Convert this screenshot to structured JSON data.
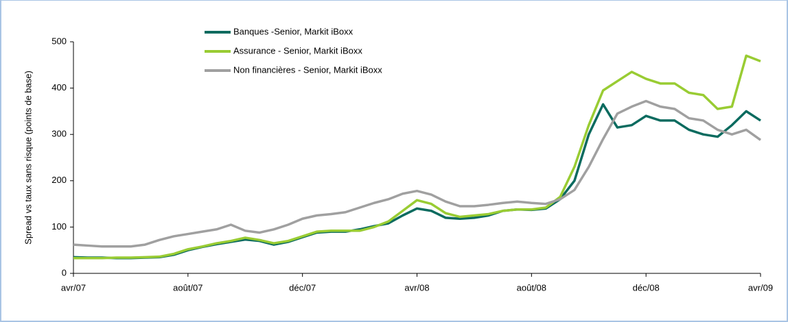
{
  "chart_data": {
    "type": "line",
    "ylabel": "Spread vs taux sans risque (points de base)",
    "categories": [
      "avr/07",
      null,
      null,
      null,
      null,
      null,
      null,
      null,
      "août/07",
      null,
      null,
      null,
      null,
      null,
      null,
      null,
      "déc/07",
      null,
      null,
      null,
      null,
      null,
      null,
      null,
      "avr/08",
      null,
      null,
      null,
      null,
      null,
      null,
      null,
      "août/08",
      null,
      null,
      null,
      null,
      null,
      null,
      null,
      "déc/08",
      null,
      null,
      null,
      null,
      null,
      null,
      null,
      "avr/09"
    ],
    "series": [
      {
        "name": "Banques -Senior, Markit iBoxx",
        "color": "#0b6b5f",
        "values": [
          35,
          34,
          34,
          33,
          33,
          34,
          35,
          40,
          50,
          57,
          63,
          68,
          73,
          70,
          62,
          68,
          78,
          88,
          90,
          90,
          95,
          102,
          108,
          125,
          140,
          135,
          120,
          118,
          120,
          125,
          135,
          138,
          137,
          140,
          160,
          200,
          300,
          365,
          315,
          320,
          340,
          330,
          330,
          310,
          300,
          295,
          320,
          350,
          330
        ]
      },
      {
        "name": "Assurance - Senior, Markit iBoxx",
        "color": "#99cc33",
        "values": [
          33,
          33,
          33,
          34,
          34,
          35,
          36,
          42,
          52,
          58,
          65,
          70,
          77,
          72,
          65,
          70,
          80,
          90,
          92,
          92,
          92,
          100,
          112,
          135,
          158,
          150,
          130,
          122,
          125,
          128,
          135,
          138,
          138,
          142,
          165,
          230,
          320,
          395,
          415,
          435,
          420,
          410,
          410,
          390,
          385,
          355,
          360,
          470,
          458
        ]
      },
      {
        "name": "Non financières - Senior, Markit iBoxx",
        "color": "#a0a0a0",
        "values": [
          62,
          60,
          58,
          58,
          58,
          62,
          72,
          80,
          85,
          90,
          95,
          105,
          92,
          88,
          95,
          105,
          118,
          125,
          128,
          132,
          142,
          152,
          160,
          172,
          178,
          170,
          155,
          145,
          145,
          148,
          152,
          155,
          152,
          150,
          160,
          180,
          230,
          290,
          345,
          360,
          372,
          360,
          355,
          335,
          330,
          310,
          300,
          310,
          288
        ]
      }
    ],
    "ylim": [
      0,
      500
    ],
    "yticks": [
      0,
      100,
      200,
      300,
      400,
      500
    ]
  }
}
